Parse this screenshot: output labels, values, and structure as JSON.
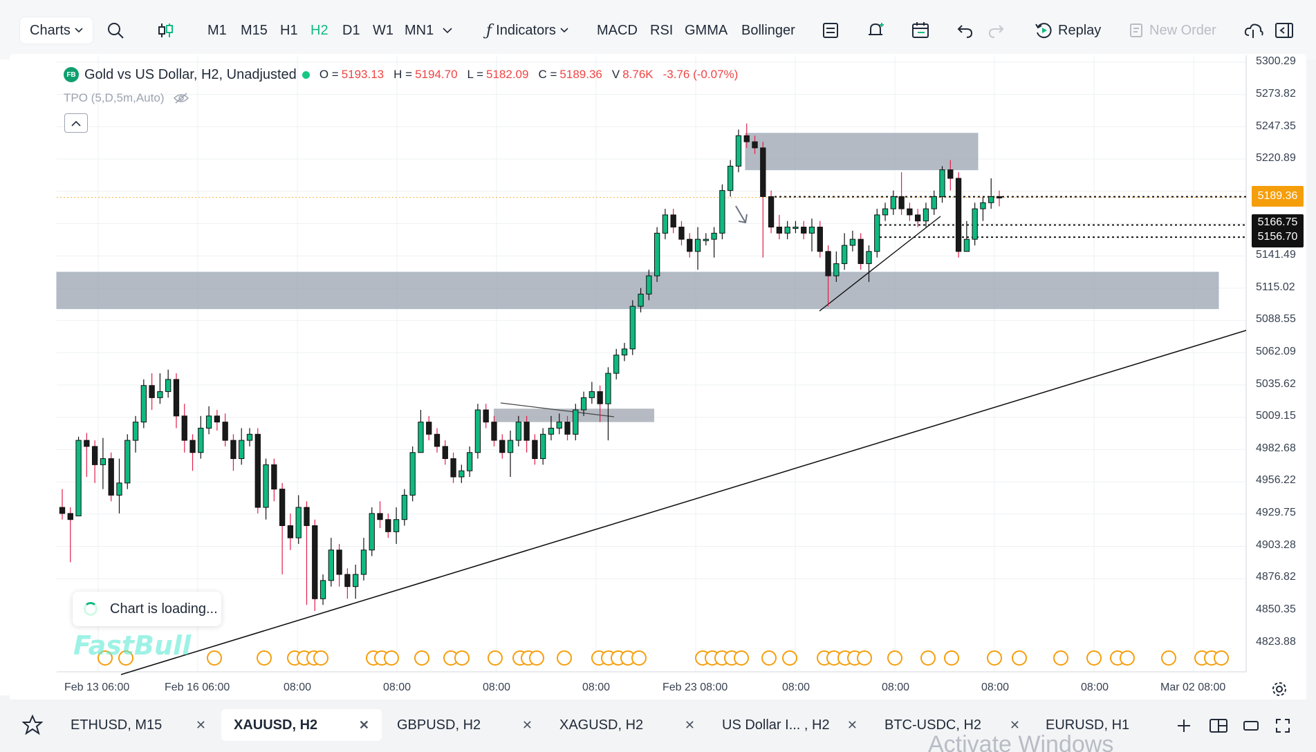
{
  "toolbar": {
    "charts_label": "Charts",
    "timeframes": [
      "M1",
      "M15",
      "H1",
      "H2",
      "D1",
      "W1",
      "MN1"
    ],
    "active_timeframe": "H2",
    "indicators_label": "Indicators",
    "indicator_shortcuts": [
      "MACD",
      "RSI",
      "GMMA",
      "Bollinger"
    ],
    "replay_label": "Replay",
    "new_order_label": "New Order"
  },
  "legend": {
    "badge": "FB",
    "title": "Gold vs US Dollar, H2, Unadjusted",
    "o_key": "O =",
    "o_val": "5193.13",
    "h_key": "H =",
    "h_val": "5194.70",
    "l_key": "L =",
    "l_val": "5182.09",
    "c_key": "C =",
    "c_val": "5189.36",
    "v_key": "V",
    "v_val": "8.76K",
    "change": "-3.76 (-0.07%)",
    "tpo": "TPO (5,D,5m,Auto)"
  },
  "price_axis": {
    "labels": [
      "5300.29",
      "5273.82",
      "5247.35",
      "5220.89",
      "5141.49",
      "5115.02",
      "5088.55",
      "5062.09",
      "5035.62",
      "5009.15",
      "4982.68",
      "4956.22",
      "4929.75",
      "4903.28",
      "4876.82",
      "4850.35",
      "4823.88"
    ],
    "current_price": "5189.36",
    "level_1": "5166.75",
    "level_2": "5156.70"
  },
  "time_axis": {
    "labels": [
      "Feb 13 06:00",
      "Feb 16 06:00",
      "08:00",
      "08:00",
      "08:00",
      "08:00",
      "Feb 23 08:00",
      "08:00",
      "08:00",
      "08:00",
      "08:00",
      "Mar 02 08:00"
    ]
  },
  "overlay": {
    "loading_text": "Chart is loading...",
    "watermark": "FastBull",
    "activate_windows": "Activate Windows"
  },
  "tabs": [
    {
      "label": "ETHUSD, M15"
    },
    {
      "label": "XAUUSD, H2"
    },
    {
      "label": "GBPUSD, H2"
    },
    {
      "label": "XAGUSD, H2"
    },
    {
      "label": "US Dollar I... , H2"
    },
    {
      "label": "BTC-USDC, H2"
    },
    {
      "label": "EURUSD, H1"
    }
  ],
  "active_tab": "XAUUSD, H2",
  "colors": {
    "up": "#10b981",
    "down": "#e11d48",
    "body_dark": "#1a1a1a",
    "accent": "#10b981",
    "current_price_badge": "#f59e0b",
    "zone_fill": "#9ca3af"
  },
  "chart_data": {
    "type": "candlestick",
    "symbol": "XAUUSD",
    "timeframe": "H2",
    "last_close": 5189.36,
    "levels": [
      5166.75,
      5156.7
    ],
    "candles": [
      [
        4935,
        4930,
        4950,
        4925
      ],
      [
        4930,
        4925,
        4935,
        4890
      ],
      [
        4928,
        4990,
        4993,
        4928
      ],
      [
        4990,
        4985,
        4996,
        4960
      ],
      [
        4985,
        4970,
        4990,
        4955
      ],
      [
        4970,
        4975,
        4992,
        4950
      ],
      [
        4975,
        4945,
        4980,
        4940
      ],
      [
        4945,
        4955,
        4975,
        4930
      ],
      [
        4955,
        4990,
        4995,
        4950
      ],
      [
        4990,
        5005,
        5010,
        4980
      ],
      [
        5005,
        5035,
        5040,
        5000
      ],
      [
        5035,
        5025,
        5045,
        5015
      ],
      [
        5025,
        5030,
        5045,
        5020
      ],
      [
        5030,
        5040,
        5048,
        5025
      ],
      [
        5040,
        5010,
        5045,
        5000
      ],
      [
        5010,
        4990,
        5020,
        4980
      ],
      [
        4990,
        4980,
        4995,
        4965
      ],
      [
        4980,
        5000,
        5010,
        4975
      ],
      [
        5000,
        5010,
        5018,
        4995
      ],
      [
        5010,
        5005,
        5015,
        4998
      ],
      [
        5005,
        4990,
        5012,
        4985
      ],
      [
        4990,
        4975,
        4995,
        4965
      ],
      [
        4975,
        4990,
        5000,
        4970
      ],
      [
        4990,
        4995,
        5000,
        4985
      ],
      [
        4995,
        4935,
        5000,
        4930
      ],
      [
        4935,
        4970,
        4975,
        4925
      ],
      [
        4970,
        4950,
        4975,
        4940
      ],
      [
        4950,
        4920,
        4955,
        4880
      ],
      [
        4920,
        4910,
        4930,
        4900
      ],
      [
        4910,
        4935,
        4945,
        4905
      ],
      [
        4935,
        4920,
        4940,
        4855
      ],
      [
        4920,
        4860,
        4925,
        4850
      ],
      [
        4860,
        4875,
        4880,
        4855
      ],
      [
        4875,
        4900,
        4910,
        4870
      ],
      [
        4900,
        4880,
        4905,
        4870
      ],
      [
        4880,
        4870,
        4885,
        4860
      ],
      [
        4870,
        4880,
        4888,
        4860
      ],
      [
        4880,
        4900,
        4910,
        4875
      ],
      [
        4900,
        4930,
        4935,
        4895
      ],
      [
        4930,
        4925,
        4940,
        4918
      ],
      [
        4925,
        4915,
        4930,
        4910
      ],
      [
        4915,
        4925,
        4935,
        4905
      ],
      [
        4925,
        4945,
        4950,
        4920
      ],
      [
        4945,
        4980,
        4985,
        4940
      ],
      [
        4980,
        5005,
        5015,
        5000
      ],
      [
        5005,
        4995,
        5010,
        4990
      ],
      [
        4995,
        4985,
        5000,
        4980
      ],
      [
        4985,
        4975,
        4990,
        4970
      ],
      [
        4975,
        4960,
        4980,
        4955
      ],
      [
        4960,
        4965,
        4970,
        4955
      ],
      [
        4965,
        4980,
        4985,
        4960
      ],
      [
        4980,
        5015,
        5020,
        4975
      ],
      [
        5015,
        5005,
        5020,
        5000
      ],
      [
        5005,
        4990,
        5010,
        4985
      ],
      [
        4990,
        4980,
        4995,
        4975
      ],
      [
        4980,
        4990,
        4998,
        4960
      ],
      [
        4990,
        5005,
        5010,
        4985
      ],
      [
        5005,
        4990,
        5010,
        4980
      ],
      [
        4990,
        4975,
        4995,
        4970
      ],
      [
        4975,
        4995,
        5000,
        4970
      ],
      [
        4995,
        5000,
        5010,
        4990
      ],
      [
        5000,
        5005,
        5012,
        4995
      ],
      [
        5005,
        4995,
        5010,
        4990
      ],
      [
        4995,
        5015,
        5020,
        4990
      ],
      [
        5015,
        5025,
        5030,
        5010
      ],
      [
        5025,
        5030,
        5038,
        5020
      ],
      [
        5030,
        5020,
        5035,
        5005
      ],
      [
        5020,
        5045,
        5050,
        4990
      ],
      [
        5045,
        5060,
        5065,
        5040
      ],
      [
        5060,
        5065,
        5070,
        5055
      ],
      [
        5065,
        5100,
        5105,
        5060
      ],
      [
        5100,
        5110,
        5115,
        5095
      ],
      [
        5110,
        5125,
        5130,
        5105
      ],
      [
        5125,
        5160,
        5165,
        5120
      ],
      [
        5160,
        5175,
        5180,
        5155
      ],
      [
        5175,
        5165,
        5180,
        5160
      ],
      [
        5165,
        5155,
        5170,
        5150
      ],
      [
        5155,
        5145,
        5160,
        5140
      ],
      [
        5145,
        5155,
        5165,
        5130
      ],
      [
        5155,
        5155,
        5160,
        5150
      ],
      [
        5155,
        5160,
        5165,
        5140
      ],
      [
        5160,
        5195,
        5200,
        5155
      ],
      [
        5195,
        5215,
        5220,
        5190
      ],
      [
        5215,
        5240,
        5245,
        5210
      ],
      [
        5240,
        5235,
        5250,
        5230
      ],
      [
        5235,
        5230,
        5240,
        5225
      ],
      [
        5230,
        5190,
        5235,
        5140
      ],
      [
        5190,
        5165,
        5195,
        5160
      ],
      [
        5165,
        5160,
        5175,
        5155
      ],
      [
        5160,
        5165,
        5170,
        5155
      ],
      [
        5165,
        5165,
        5170,
        5160
      ],
      [
        5165,
        5160,
        5170,
        5155
      ],
      [
        5160,
        5165,
        5172,
        5145
      ],
      [
        5165,
        5145,
        5170,
        5140
      ],
      [
        5145,
        5125,
        5150,
        5100
      ],
      [
        5125,
        5135,
        5145,
        5120
      ],
      [
        5135,
        5150,
        5160,
        5130
      ],
      [
        5150,
        5155,
        5162,
        5145
      ],
      [
        5155,
        5135,
        5160,
        5130
      ],
      [
        5135,
        5145,
        5150,
        5120
      ],
      [
        5145,
        5175,
        5180,
        5140
      ],
      [
        5175,
        5180,
        5185,
        5170
      ],
      [
        5180,
        5190,
        5195,
        5175
      ],
      [
        5190,
        5180,
        5210,
        5175
      ],
      [
        5180,
        5175,
        5185,
        5170
      ],
      [
        5175,
        5170,
        5180,
        5165
      ],
      [
        5170,
        5180,
        5185,
        5165
      ],
      [
        5180,
        5190,
        5195,
        5175
      ],
      [
        5190,
        5212,
        5215,
        5185
      ],
      [
        5212,
        5205,
        5220,
        5195
      ],
      [
        5205,
        5145,
        5210,
        5140
      ],
      [
        5145,
        5155,
        5170,
        5150
      ],
      [
        5155,
        5180,
        5185,
        5150
      ],
      [
        5180,
        5185,
        5190,
        5170
      ],
      [
        5185,
        5190,
        5205,
        5180
      ],
      [
        5190,
        5189,
        5195,
        5182
      ]
    ]
  }
}
